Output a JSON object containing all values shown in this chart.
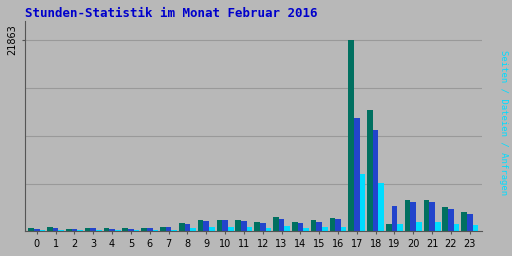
{
  "title": "Stunden-Statistik im Monat Februar 2016",
  "title_color": "#0000cc",
  "ylabel": "Seiten / Dateien / Anfragen",
  "background_color": "#b8b8b8",
  "plot_bg_color": "#b8b8b8",
  "hours": [
    0,
    1,
    2,
    3,
    4,
    5,
    6,
    7,
    8,
    9,
    10,
    11,
    12,
    13,
    14,
    15,
    16,
    17,
    18,
    19,
    20,
    21,
    22,
    23
  ],
  "seiten": [
    350,
    500,
    280,
    440,
    360,
    350,
    420,
    550,
    1000,
    1300,
    1350,
    1250,
    1100,
    1600,
    1050,
    1250,
    1550,
    21863,
    13800,
    900,
    3600,
    3600,
    2800,
    2200
  ],
  "dateien": [
    320,
    420,
    250,
    360,
    310,
    300,
    350,
    460,
    900,
    1200,
    1250,
    1150,
    980,
    1450,
    960,
    1100,
    1400,
    13000,
    11600,
    2950,
    3350,
    3300,
    2600,
    2000
  ],
  "anfragen": [
    130,
    200,
    120,
    160,
    140,
    120,
    140,
    180,
    350,
    480,
    500,
    460,
    380,
    600,
    360,
    460,
    550,
    6500,
    5500,
    900,
    1100,
    1100,
    900,
    750
  ],
  "color_seiten": "#007060",
  "color_dateien": "#2244cc",
  "color_anfragen": "#00ddff",
  "ylim_max": 24000,
  "ytick_val": 21863,
  "ytick_label": "21863",
  "bar_width": 0.3,
  "grid_levels": [
    5466,
    10931,
    16397,
    21863
  ]
}
